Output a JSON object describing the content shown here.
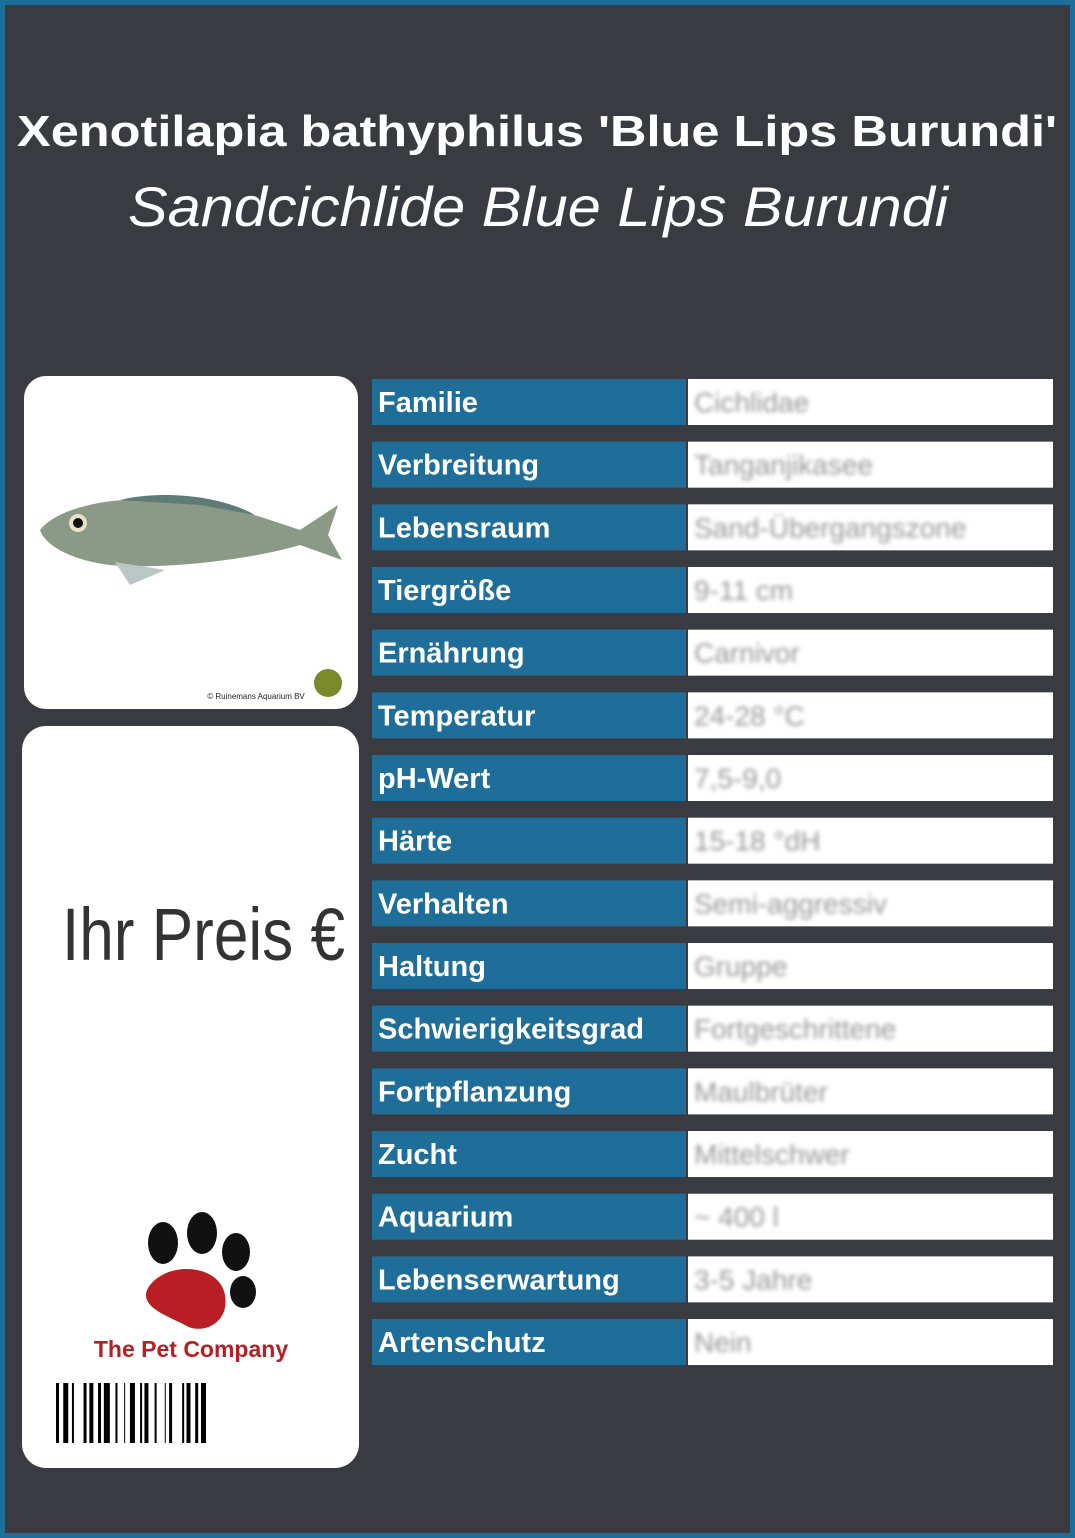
{
  "header": {
    "title": "Xenotilapia bathyphilus 'Blue Lips Burundi'",
    "subtitle": "Sandcichlide Blue Lips Burundi"
  },
  "image": {
    "credit": "© Ruinemans Aquarium BV"
  },
  "price": {
    "label": "Ihr Preis €"
  },
  "brand": {
    "name": "The Pet Company"
  },
  "table": {
    "rows": [
      [
        "Familie",
        "Cichlidae"
      ],
      [
        "Verbreitung",
        "Tanganjikasee"
      ],
      [
        "Lebensraum",
        "Sand-Übergangszone"
      ],
      [
        "Tiergröße",
        "9-11 cm"
      ],
      [
        "Ernährung",
        "Carnivor"
      ],
      [
        "Temperatur",
        "24-28 °C"
      ],
      [
        "pH-Wert",
        "7,5-9,0"
      ],
      [
        "Härte",
        "15-18 °dH"
      ],
      [
        "Verhalten",
        "Semi-aggressiv"
      ],
      [
        "Haltung",
        "Gruppe"
      ],
      [
        "Schwierigkeitsgrad",
        "Fortgeschrittene"
      ],
      [
        "Fortpflanzung",
        "Maulbrüter"
      ],
      [
        "Zucht",
        "Mittelschwer"
      ],
      [
        "Aquarium",
        "~ 400 l"
      ],
      [
        "Lebenserwartung",
        "3-5 Jahre"
      ],
      [
        "Artenschutz",
        "Nein"
      ]
    ]
  }
}
